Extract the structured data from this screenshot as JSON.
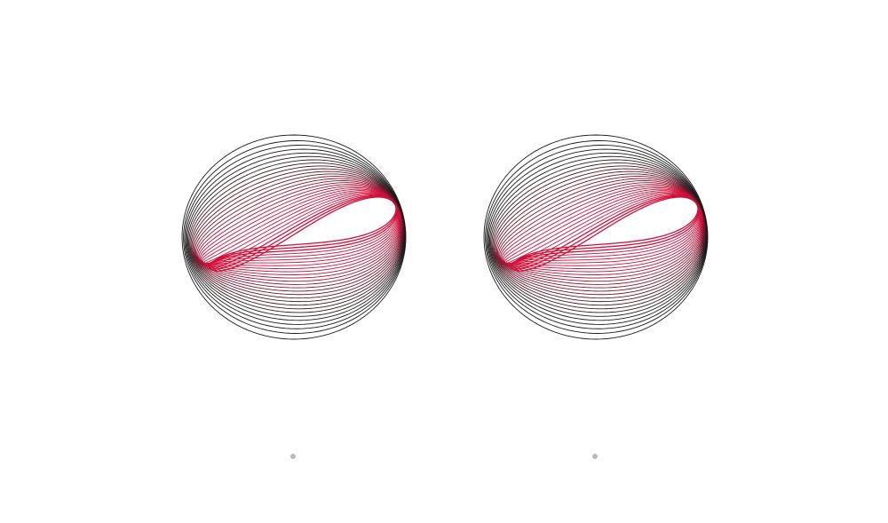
{
  "artwork": {
    "panels": [
      {
        "name": "left-artwork"
      },
      {
        "name": "right-artwork"
      }
    ],
    "ring_count": 28,
    "colors": {
      "outer_ring": "#1a1a1a",
      "inner_ring": "#d0103a",
      "background": "#ffffff",
      "pager_dot": "#bbbbbb"
    },
    "icons": {
      "motif": "twisted-ring-line-art",
      "pager": "dot"
    }
  },
  "pager": {
    "dots": 2
  }
}
